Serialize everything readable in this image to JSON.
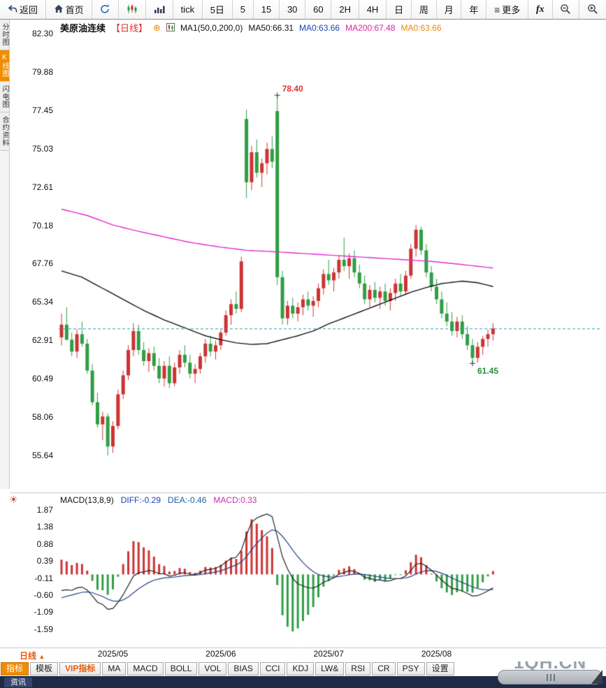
{
  "toolbar": {
    "back": "返回",
    "home": "首页",
    "periods": [
      "tick",
      "5日",
      "5",
      "15",
      "30",
      "60",
      "2H",
      "4H",
      "日",
      "周",
      "月",
      "年"
    ],
    "more": "更多",
    "fx": "fx"
  },
  "sidebar": {
    "items": [
      "分时图",
      "K线图",
      "闪电图",
      "合约资料"
    ],
    "active": "K线图"
  },
  "chart_header": {
    "symbol": "美原油连续",
    "period_tag": "【日线】",
    "ma_settings": "MA1(50,0,200,0)",
    "ma50": "MA50:66.31",
    "ma0_a": "MA0:63.66",
    "ma200": "MA200:67.48",
    "ma0_b": "MA0:63.66"
  },
  "macd_header": {
    "title": "MACD(13,8,9)",
    "diff": "DIFF:-0.29",
    "dea": "DEA:-0.46",
    "macd": "MACD:0.33"
  },
  "bottom": {
    "period_label": "日线",
    "tabs": [
      "指标",
      "模板",
      "VIP指标",
      "MA",
      "MACD",
      "BOLL",
      "VOL",
      "BIAS",
      "CCI",
      "KDJ",
      "LW&",
      "RSI",
      "CR",
      "PSY",
      "设置"
    ],
    "active_tab": "指标",
    "vip_tab": "VIP指标",
    "news_tab": "资讯",
    "watermark": "1QH.CN"
  },
  "chart_data": [
    {
      "type": "candlestick",
      "title": "美原油连续 日线",
      "y_ticks": [
        82.3,
        79.88,
        77.45,
        75.03,
        72.61,
        70.18,
        67.76,
        65.34,
        62.91,
        60.49,
        58.06,
        55.64
      ],
      "x_labels": [
        {
          "label": "2025/05",
          "index": 10
        },
        {
          "label": "2025/06",
          "index": 31
        },
        {
          "label": "2025/07",
          "index": 52
        },
        {
          "label": "2025/08",
          "index": 73
        }
      ],
      "last_price": 63.66,
      "annotations": [
        {
          "text": "78.40",
          "index": 42,
          "price": 78.4,
          "color": "#e03131",
          "kind": "high"
        },
        {
          "text": "61.45",
          "index": 80,
          "price": 61.45,
          "color": "#2b8a3e",
          "kind": "low"
        }
      ],
      "colors": {
        "up": "#cd3333",
        "down": "#2f9e44",
        "ma50": "#111111",
        "ma200": "#e22ad1",
        "last_price_line": "#2a9fa8"
      },
      "candles": [
        [
          63.1,
          64.6,
          62.6,
          63.9
        ],
        [
          63.9,
          65.0,
          62.9,
          62.95
        ],
        [
          62.95,
          63.4,
          61.9,
          62.2
        ],
        [
          62.2,
          63.6,
          61.8,
          63.3
        ],
        [
          63.3,
          64.1,
          62.5,
          62.7
        ],
        [
          62.7,
          63.0,
          60.8,
          61.0
        ],
        [
          61.0,
          61.4,
          58.8,
          59.0
        ],
        [
          59.0,
          59.6,
          57.4,
          57.6
        ],
        [
          57.6,
          58.4,
          56.6,
          58.1
        ],
        [
          58.1,
          58.3,
          55.64,
          56.2
        ],
        [
          56.2,
          57.8,
          55.8,
          57.5
        ],
        [
          57.5,
          59.8,
          57.3,
          59.5
        ],
        [
          59.5,
          61.0,
          59.2,
          60.7
        ],
        [
          60.7,
          62.6,
          60.4,
          62.3
        ],
        [
          62.3,
          64.0,
          61.9,
          63.5
        ],
        [
          63.5,
          63.9,
          62.0,
          62.3
        ],
        [
          62.3,
          62.8,
          61.3,
          61.6
        ],
        [
          61.6,
          62.4,
          60.9,
          62.1
        ],
        [
          62.1,
          62.5,
          61.0,
          61.3
        ],
        [
          61.3,
          61.8,
          60.2,
          60.5
        ],
        [
          60.5,
          61.6,
          60.0,
          61.3
        ],
        [
          61.3,
          61.9,
          59.9,
          60.2
        ],
        [
          60.2,
          61.5,
          60.0,
          61.2
        ],
        [
          61.2,
          62.3,
          60.8,
          62.0
        ],
        [
          62.0,
          62.6,
          61.2,
          61.5
        ],
        [
          61.5,
          62.0,
          60.5,
          60.8
        ],
        [
          60.8,
          61.4,
          60.2,
          61.1
        ],
        [
          61.1,
          62.1,
          60.8,
          61.9
        ],
        [
          61.9,
          63.0,
          61.5,
          62.7
        ],
        [
          62.7,
          63.2,
          61.9,
          62.2
        ],
        [
          62.2,
          62.9,
          61.7,
          62.6
        ],
        [
          62.6,
          63.6,
          62.3,
          63.4
        ],
        [
          63.4,
          64.8,
          63.2,
          64.5
        ],
        [
          64.5,
          65.5,
          63.9,
          65.2
        ],
        [
          65.2,
          66.0,
          64.6,
          64.9
        ],
        [
          64.9,
          68.2,
          64.7,
          67.9
        ],
        [
          76.9,
          77.5,
          71.9,
          72.9
        ],
        [
          72.9,
          75.2,
          72.4,
          74.8
        ],
        [
          74.8,
          75.6,
          73.2,
          73.5
        ],
        [
          73.5,
          74.4,
          72.6,
          74.1
        ],
        [
          74.1,
          75.4,
          73.4,
          75.0
        ],
        [
          75.0,
          75.8,
          73.8,
          74.2
        ],
        [
          77.4,
          78.4,
          66.4,
          66.9
        ],
        [
          66.9,
          67.3,
          63.9,
          64.3
        ],
        [
          64.3,
          65.4,
          63.9,
          65.1
        ],
        [
          65.1,
          65.6,
          64.3,
          64.6
        ],
        [
          64.6,
          65.3,
          64.1,
          65.0
        ],
        [
          65.0,
          65.8,
          64.5,
          65.5
        ],
        [
          65.5,
          66.0,
          64.8,
          65.1
        ],
        [
          65.1,
          65.7,
          64.4,
          65.4
        ],
        [
          65.4,
          66.5,
          65.0,
          66.2
        ],
        [
          66.2,
          67.4,
          65.8,
          67.1
        ],
        [
          67.1,
          68.0,
          66.4,
          66.7
        ],
        [
          66.7,
          67.5,
          66.0,
          67.2
        ],
        [
          67.2,
          68.3,
          66.8,
          68.0
        ],
        [
          68.0,
          69.4,
          67.3,
          67.6
        ],
        [
          67.6,
          68.4,
          66.8,
          68.1
        ],
        [
          68.1,
          68.6,
          66.9,
          67.2
        ],
        [
          67.2,
          67.7,
          66.2,
          66.5
        ],
        [
          66.5,
          67.0,
          65.2,
          65.5
        ],
        [
          65.5,
          66.4,
          65.0,
          66.1
        ],
        [
          66.1,
          66.6,
          65.3,
          65.6
        ],
        [
          65.6,
          66.3,
          64.9,
          66.0
        ],
        [
          66.0,
          66.5,
          65.1,
          65.4
        ],
        [
          65.4,
          66.2,
          64.8,
          65.9
        ],
        [
          65.9,
          66.8,
          65.4,
          66.5
        ],
        [
          66.5,
          67.1,
          65.7,
          66.0
        ],
        [
          66.0,
          67.3,
          65.8,
          67.0
        ],
        [
          67.0,
          69.0,
          66.8,
          68.7
        ],
        [
          68.7,
          70.2,
          68.2,
          69.9
        ],
        [
          69.9,
          70.1,
          68.3,
          68.6
        ],
        [
          68.6,
          69.0,
          66.9,
          67.2
        ],
        [
          67.2,
          67.6,
          66.0,
          66.3
        ],
        [
          66.3,
          66.8,
          65.2,
          65.5
        ],
        [
          65.5,
          66.0,
          64.3,
          64.6
        ],
        [
          64.6,
          65.3,
          63.8,
          64.1
        ],
        [
          64.1,
          64.7,
          63.2,
          63.5
        ],
        [
          63.5,
          64.4,
          63.1,
          64.1
        ],
        [
          64.1,
          64.5,
          63.0,
          63.3
        ],
        [
          63.3,
          63.8,
          62.3,
          62.6
        ],
        [
          62.6,
          63.0,
          61.45,
          61.8
        ],
        [
          61.8,
          62.8,
          61.5,
          62.5
        ],
        [
          62.5,
          63.2,
          62.0,
          63.0
        ],
        [
          63.0,
          63.6,
          62.5,
          63.3
        ],
        [
          63.3,
          64.0,
          62.9,
          63.66
        ]
      ],
      "ma50_points": [
        [
          0,
          67.3
        ],
        [
          4,
          66.9
        ],
        [
          8,
          66.2
        ],
        [
          12,
          65.5
        ],
        [
          16,
          64.8
        ],
        [
          20,
          64.2
        ],
        [
          24,
          63.7
        ],
        [
          28,
          63.2
        ],
        [
          31,
          62.95
        ],
        [
          34,
          62.75
        ],
        [
          37,
          62.65
        ],
        [
          40,
          62.7
        ],
        [
          43,
          62.95
        ],
        [
          46,
          63.2
        ],
        [
          49,
          63.5
        ],
        [
          52,
          63.95
        ],
        [
          56,
          64.45
        ],
        [
          60,
          64.95
        ],
        [
          64,
          65.45
        ],
        [
          68,
          65.95
        ],
        [
          71,
          66.25
        ],
        [
          74,
          66.5
        ],
        [
          78,
          66.65
        ],
        [
          81,
          66.55
        ],
        [
          84,
          66.31
        ]
      ],
      "ma200_points": [
        [
          0,
          71.2
        ],
        [
          5,
          70.8
        ],
        [
          10,
          70.2
        ],
        [
          15,
          69.8
        ],
        [
          20,
          69.45
        ],
        [
          25,
          69.1
        ],
        [
          31,
          68.8
        ],
        [
          36,
          68.6
        ],
        [
          42,
          68.5
        ],
        [
          52,
          68.3
        ],
        [
          62,
          68.1
        ],
        [
          72,
          67.9
        ],
        [
          78,
          67.7
        ],
        [
          84,
          67.48
        ]
      ]
    },
    {
      "type": "macd-histogram",
      "params": [
        13,
        8,
        9
      ],
      "y_ticks": [
        1.87,
        1.38,
        0.88,
        0.39,
        -0.11,
        -0.6,
        -1.09,
        -1.59
      ],
      "latest": {
        "diff": -0.29,
        "dea": -0.46,
        "macd": 0.33
      },
      "colors": {
        "positive": "#cd3333",
        "negative": "#2f9e44",
        "diff_line": "#222222",
        "dea_line": "#27408b"
      }
    }
  ]
}
